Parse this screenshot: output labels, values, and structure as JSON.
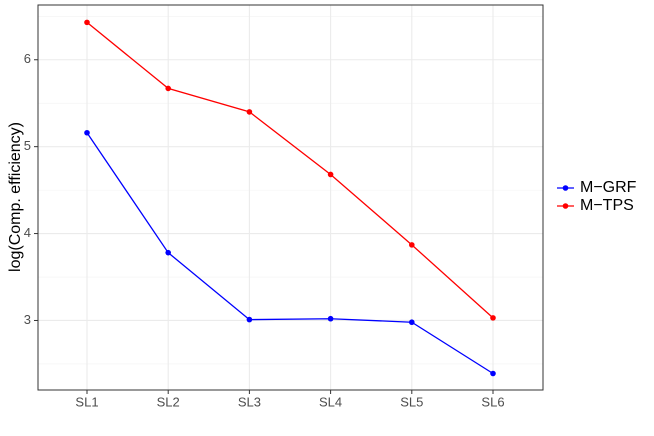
{
  "chart_data": {
    "type": "line",
    "y_label": "log(Comp. efficiency)",
    "categories": [
      "SL1",
      "SL2",
      "SL3",
      "SL4",
      "SL5",
      "SL6"
    ],
    "series": [
      {
        "name": "M−GRF",
        "color": "#0000ff",
        "values": [
          5.16,
          3.78,
          3.01,
          3.02,
          2.98,
          2.39
        ]
      },
      {
        "name": "M−TPS",
        "color": "#ff0000",
        "values": [
          6.43,
          5.67,
          5.4,
          4.68,
          3.87,
          3.03
        ]
      }
    ],
    "ylim": [
      2.2,
      6.63
    ],
    "yticks": [
      3,
      4,
      5,
      6
    ],
    "grid": true,
    "legend": "right"
  }
}
